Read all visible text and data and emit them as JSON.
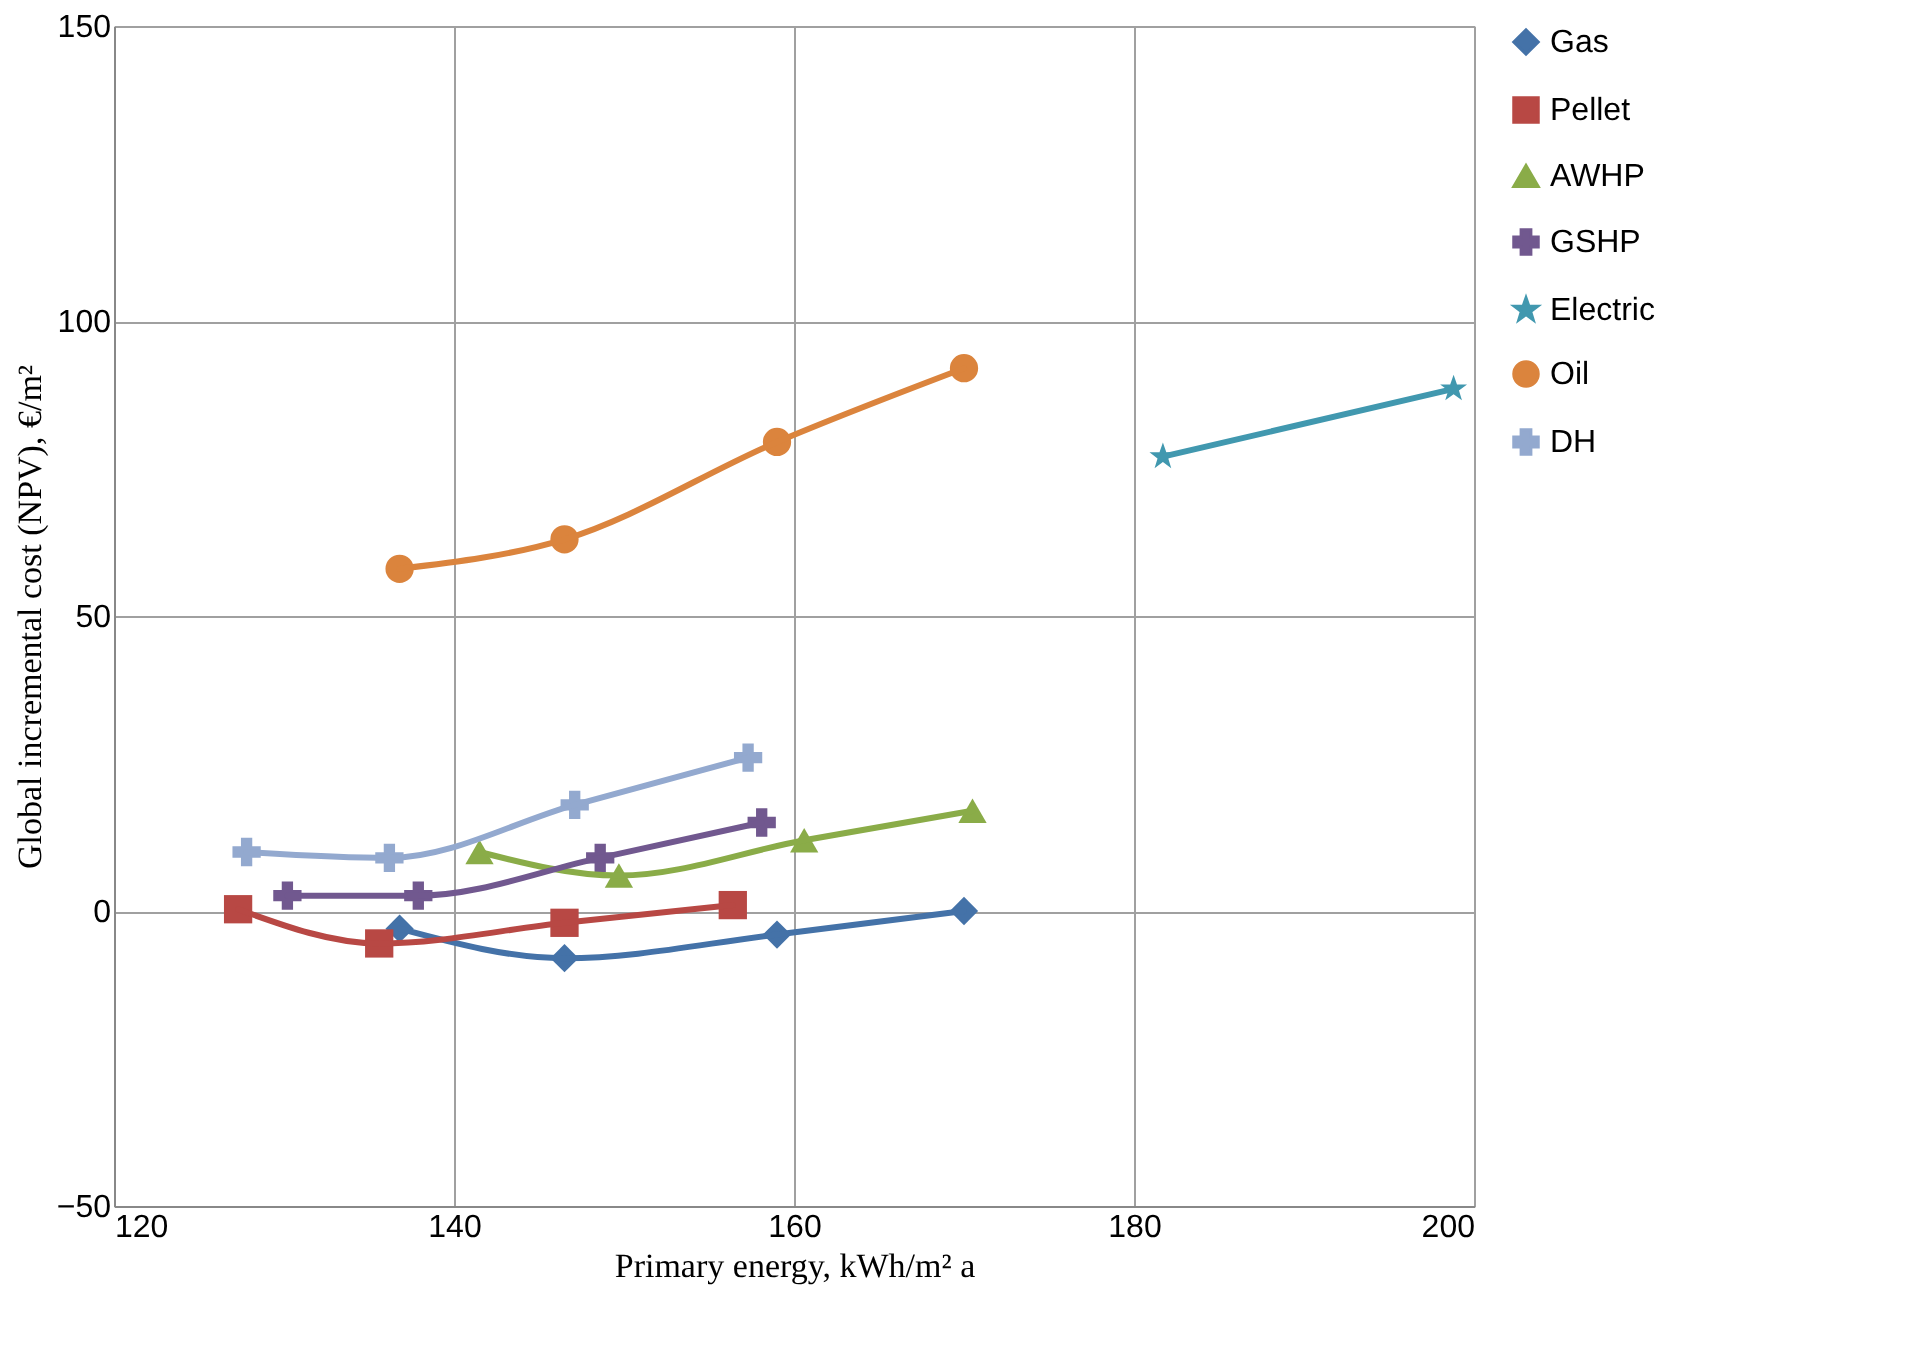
{
  "chart_data": {
    "type": "line",
    "xlabel": "Primary energy, kWh/m² a",
    "ylabel": "Global incremental cost (NPV), €/m²",
    "xlim": [
      120,
      200
    ],
    "xticks": [
      120,
      140,
      160,
      180,
      200
    ],
    "ylim": [
      -50,
      150
    ],
    "yticks": [
      -50,
      0,
      50,
      100,
      150
    ],
    "grid": true,
    "legend": "right",
    "series": [
      {
        "name": "Gas",
        "color": "#4472a8",
        "marker": "diamond",
        "x": [
          136.8,
          146.5,
          159,
          170
        ],
        "values": [
          -3,
          -8,
          -4,
          0
        ]
      },
      {
        "name": "Pellet",
        "color": "#b84844",
        "marker": "square",
        "x": [
          127.3,
          135.6,
          146.5,
          156.4
        ],
        "values": [
          0.3,
          -5.5,
          -2,
          1
        ]
      },
      {
        "name": "AWHP",
        "color": "#8aac48",
        "marker": "triangle",
        "x": [
          141.5,
          149.7,
          160.6,
          170.5
        ],
        "values": [
          10,
          6,
          12,
          17
        ]
      },
      {
        "name": "GSHP",
        "color": "#71588f",
        "marker": "cross",
        "x": [
          130.2,
          137.9,
          148.6,
          158.1
        ],
        "values": [
          2.6,
          2.6,
          9,
          15
        ]
      },
      {
        "name": "Electric",
        "color": "#4198af",
        "marker": "star",
        "x": [
          181.7,
          198.8
        ],
        "values": [
          77,
          88.5
        ]
      },
      {
        "name": "Oil",
        "color": "#db843d",
        "marker": "circle",
        "x": [
          136.8,
          146.5,
          159,
          170
        ],
        "values": [
          58,
          63,
          79.5,
          92
        ]
      },
      {
        "name": "DH",
        "color": "#93a9cf",
        "marker": "cross",
        "x": [
          127.8,
          136.2,
          147.1,
          157.3
        ],
        "values": [
          10,
          9,
          18,
          26
        ]
      }
    ]
  }
}
